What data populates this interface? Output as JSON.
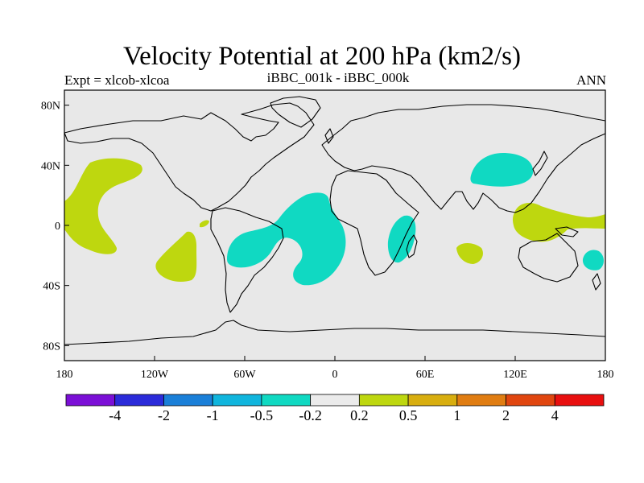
{
  "title": "Velocity Potential at 200 hPa (km2/s)",
  "experiment_label": "Expt = xlcob-xlcoa",
  "center_label": "iBBC_001k - iBBC_000k",
  "season_label": "ANN",
  "lat_ticks": [
    {
      "value": 80,
      "label": "80N"
    },
    {
      "value": 40,
      "label": "40N"
    },
    {
      "value": 0,
      "label": "0"
    },
    {
      "value": -40,
      "label": "40S"
    },
    {
      "value": -80,
      "label": "80S"
    }
  ],
  "lon_ticks": [
    {
      "value": -180,
      "label": "180"
    },
    {
      "value": -120,
      "label": "120W"
    },
    {
      "value": -60,
      "label": "60W"
    },
    {
      "value": 0,
      "label": "0"
    },
    {
      "value": 60,
      "label": "60E"
    },
    {
      "value": 120,
      "label": "120E"
    },
    {
      "value": 180,
      "label": "180"
    }
  ],
  "colorbar": {
    "colors": [
      "#7B0FD6",
      "#2B2BD9",
      "#1A7FD8",
      "#10B5DD",
      "#10D9C2",
      "#EBEBEB",
      "#BED70F",
      "#D8AE0F",
      "#E07D12",
      "#E0460F",
      "#E80F0F"
    ],
    "labels": [
      "-4",
      "-2",
      "-1",
      "-0.5",
      "-0.2",
      "0.2",
      "0.5",
      "1",
      "2",
      "4"
    ]
  },
  "map_background": "#E8E8E8",
  "positive_color": "#BED70F",
  "negative_color": "#10D9C2"
}
